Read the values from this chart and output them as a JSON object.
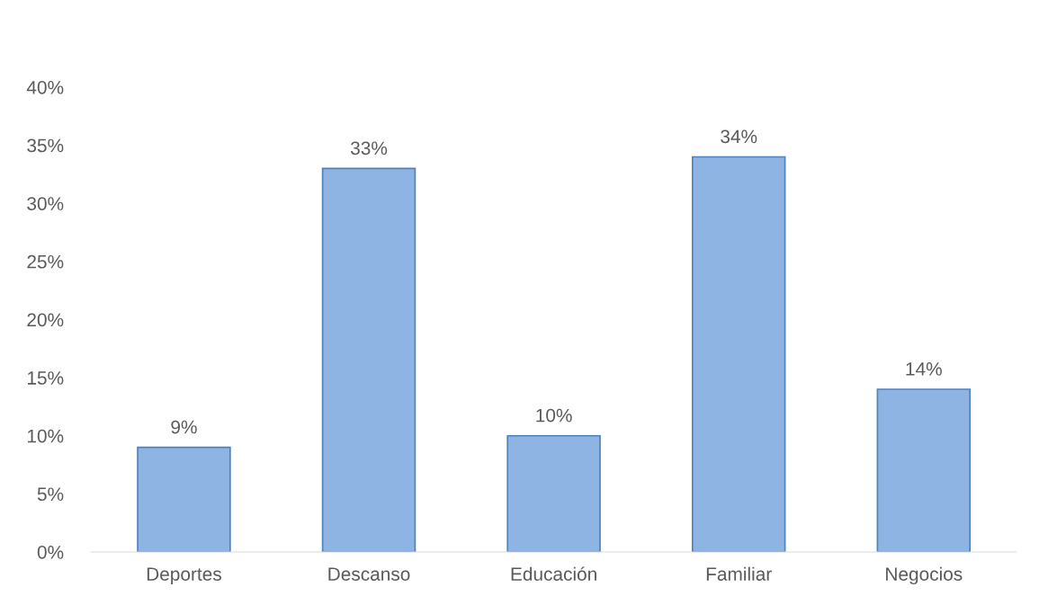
{
  "chart_data": {
    "type": "bar",
    "categories": [
      "Deportes",
      "Descanso",
      "Educación",
      "Familiar",
      "Negocios"
    ],
    "values": [
      9,
      33,
      10,
      34,
      14
    ],
    "value_labels": [
      "9%",
      "33%",
      "10%",
      "34%",
      "14%"
    ],
    "color": "#8eb4e3",
    "ylim": [
      0,
      40
    ],
    "yticks": [
      {
        "value": 0,
        "label": "0%"
      },
      {
        "value": 5,
        "label": "5%"
      },
      {
        "value": 10,
        "label": "10%"
      },
      {
        "value": 15,
        "label": "15%"
      },
      {
        "value": 20,
        "label": "20%"
      },
      {
        "value": 25,
        "label": "25%"
      },
      {
        "value": 30,
        "label": "30%"
      },
      {
        "value": 35,
        "label": "35%"
      },
      {
        "value": 40,
        "label": "40%"
      }
    ],
    "grid": false,
    "legend": false
  }
}
